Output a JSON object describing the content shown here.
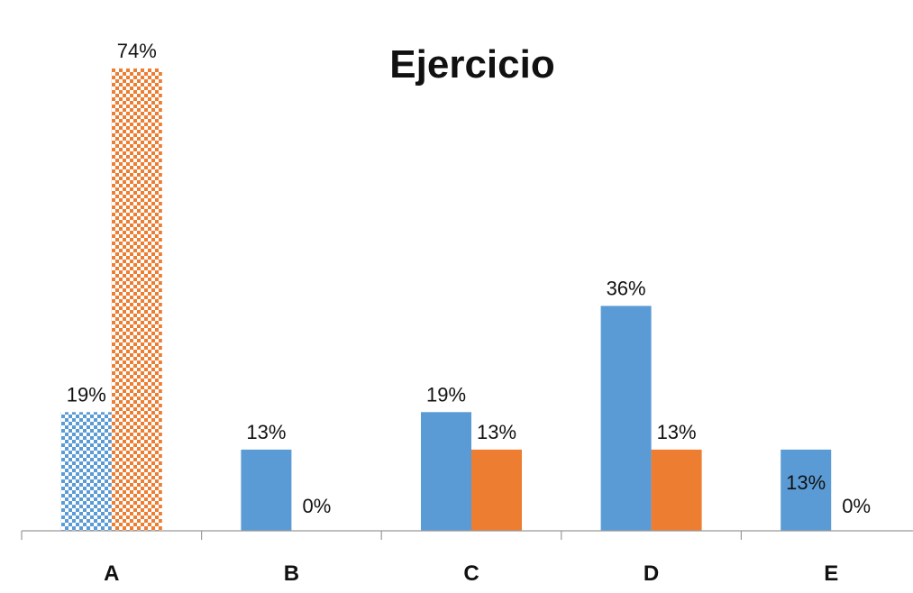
{
  "chart_data": {
    "type": "bar",
    "title": "Ejercicio",
    "xlabel": "",
    "ylabel": "",
    "categories": [
      "A",
      "B",
      "C",
      "D",
      "E"
    ],
    "series": [
      {
        "values": [
          19,
          13,
          19,
          36,
          13
        ],
        "labels": [
          "19%",
          "13%",
          "19%",
          "36%",
          "13%"
        ],
        "color": "#5B9BD5"
      },
      {
        "values": [
          74,
          0,
          13,
          13,
          0
        ],
        "labels": [
          "74%",
          "0%",
          "13%",
          "13%",
          "0%"
        ],
        "color": "#ED7D31"
      }
    ],
    "highlighted_category": "A",
    "highlight_style": "checkered",
    "ylim": [
      0,
      74
    ],
    "grid": false,
    "legend": "none"
  }
}
